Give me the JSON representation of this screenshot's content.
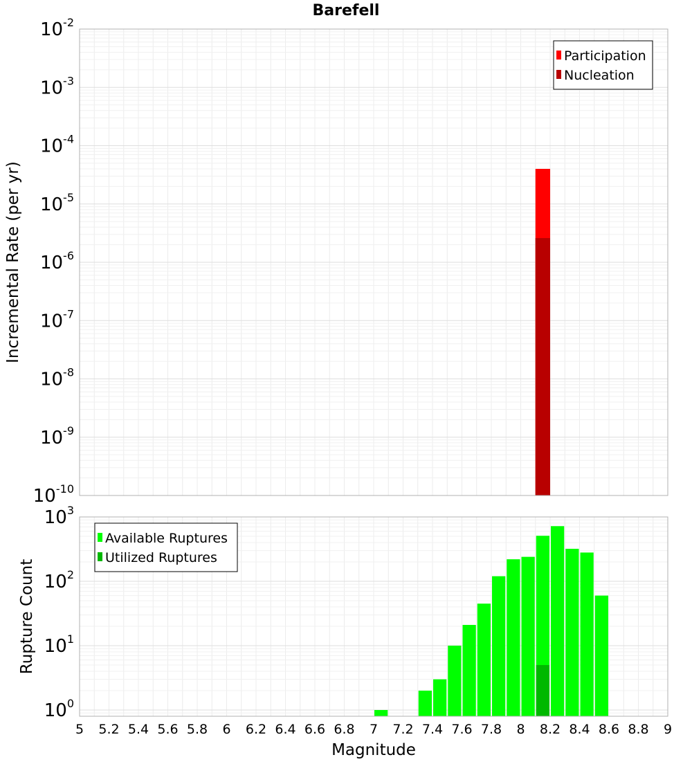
{
  "title": "Barefell",
  "chart_data": [
    {
      "type": "bar",
      "y_scale": "log",
      "ylabel": "Incremental Rate (per yr)",
      "ylim": [
        1e-10,
        0.01
      ],
      "y_ticks": [
        {
          "base": "10",
          "exp": "-2",
          "value": 0.01
        },
        {
          "base": "10",
          "exp": "-3",
          "value": 0.001
        },
        {
          "base": "10",
          "exp": "-4",
          "value": 0.0001
        },
        {
          "base": "10",
          "exp": "-5",
          "value": 1e-05
        },
        {
          "base": "10",
          "exp": "-6",
          "value": 1e-06
        },
        {
          "base": "10",
          "exp": "-7",
          "value": 1e-07
        },
        {
          "base": "10",
          "exp": "-8",
          "value": 1e-08
        },
        {
          "base": "10",
          "exp": "-9",
          "value": 1e-09
        },
        {
          "base": "10",
          "exp": "-10",
          "value": 1e-10
        }
      ],
      "legend": {
        "placement": "top-right",
        "entries": [
          {
            "label": "Participation",
            "color": "#ff0000"
          },
          {
            "label": "Nucleation",
            "color": "#b80000"
          }
        ]
      },
      "series": [
        {
          "name": "Participation",
          "color": "#ff0000",
          "bin_width": 0.1,
          "points": [
            {
              "x": 8.15,
              "y": 4e-05
            }
          ]
        },
        {
          "name": "Nucleation",
          "color": "#b80000",
          "bin_width": 0.1,
          "points": [
            {
              "x": 8.15,
              "y": 2.6e-06
            }
          ]
        }
      ]
    },
    {
      "type": "bar",
      "y_scale": "log",
      "ylabel": "Rupture Count",
      "xlabel": "Magnitude",
      "xlim": [
        5,
        9
      ],
      "ylim": [
        0.8,
        1000
      ],
      "x_ticks": [
        "5",
        "5.2",
        "5.4",
        "5.6",
        "5.8",
        "6",
        "6.2",
        "6.4",
        "6.6",
        "6.8",
        "7",
        "7.2",
        "7.4",
        "7.6",
        "7.8",
        "8",
        "8.2",
        "8.4",
        "8.6",
        "8.8",
        "9"
      ],
      "y_ticks": [
        {
          "base": "10",
          "exp": "3",
          "value": 1000
        },
        {
          "base": "10",
          "exp": "2",
          "value": 100
        },
        {
          "base": "10",
          "exp": "1",
          "value": 10
        },
        {
          "base": "10",
          "exp": "0",
          "value": 1
        }
      ],
      "legend": {
        "placement": "top-left",
        "entries": [
          {
            "label": "Available Ruptures",
            "color": "#00ff00"
          },
          {
            "label": "Utilized Ruptures",
            "color": "#00b800"
          }
        ]
      },
      "series": [
        {
          "name": "Available Ruptures",
          "color": "#00ff00",
          "bin_width": 0.1,
          "points": [
            {
              "x": 7.05,
              "y": 1
            },
            {
              "x": 7.35,
              "y": 2
            },
            {
              "x": 7.45,
              "y": 3
            },
            {
              "x": 7.55,
              "y": 10
            },
            {
              "x": 7.65,
              "y": 21
            },
            {
              "x": 7.75,
              "y": 45
            },
            {
              "x": 7.85,
              "y": 120
            },
            {
              "x": 7.95,
              "y": 220
            },
            {
              "x": 8.05,
              "y": 240
            },
            {
              "x": 8.15,
              "y": 510
            },
            {
              "x": 8.25,
              "y": 720
            },
            {
              "x": 8.35,
              "y": 320
            },
            {
              "x": 8.45,
              "y": 280
            },
            {
              "x": 8.55,
              "y": 60
            }
          ]
        },
        {
          "name": "Utilized Ruptures",
          "color": "#00b800",
          "bin_width": 0.1,
          "points": [
            {
              "x": 8.15,
              "y": 5
            }
          ]
        }
      ]
    }
  ]
}
